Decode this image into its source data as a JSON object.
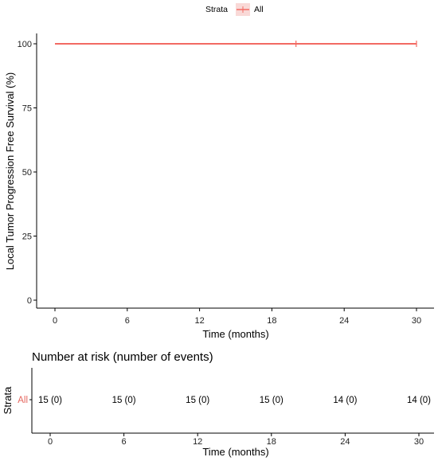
{
  "chart_data": {
    "type": "line",
    "legend": {
      "title": "Strata",
      "entries": [
        "All"
      ],
      "placement": "top"
    },
    "ylabel": "Local Tumor Progression Free Survival (%)",
    "xlabel": "Time (months)",
    "xlim": [
      0,
      30
    ],
    "ylim": [
      0,
      100
    ],
    "x_ticks": [
      0,
      6,
      12,
      18,
      24,
      30
    ],
    "y_ticks": [
      0,
      25,
      50,
      75,
      100
    ],
    "x_tick_labels": [
      "0",
      "6",
      "12",
      "18",
      "24",
      "30"
    ],
    "y_tick_labels": [
      "0",
      "25",
      "50",
      "75",
      "100"
    ],
    "grid": false,
    "series": [
      {
        "name": "All",
        "color": "#f26a63",
        "x": [
          0,
          30
        ],
        "y": [
          100,
          100
        ],
        "censor_x": [
          20,
          30
        ]
      }
    ],
    "risk_table": {
      "title": "Number at risk (number of events)",
      "ylabel": "Strata",
      "xlabel": "Time (months)",
      "strata_label": "All",
      "times": [
        0,
        6,
        12,
        18,
        24,
        30
      ],
      "time_labels": [
        "0",
        "6",
        "12",
        "18",
        "24",
        "30"
      ],
      "cells": [
        "15 (0)",
        "15 (0)",
        "15 (0)",
        "15 (0)",
        "14 (0)",
        "14 (0)"
      ]
    }
  }
}
